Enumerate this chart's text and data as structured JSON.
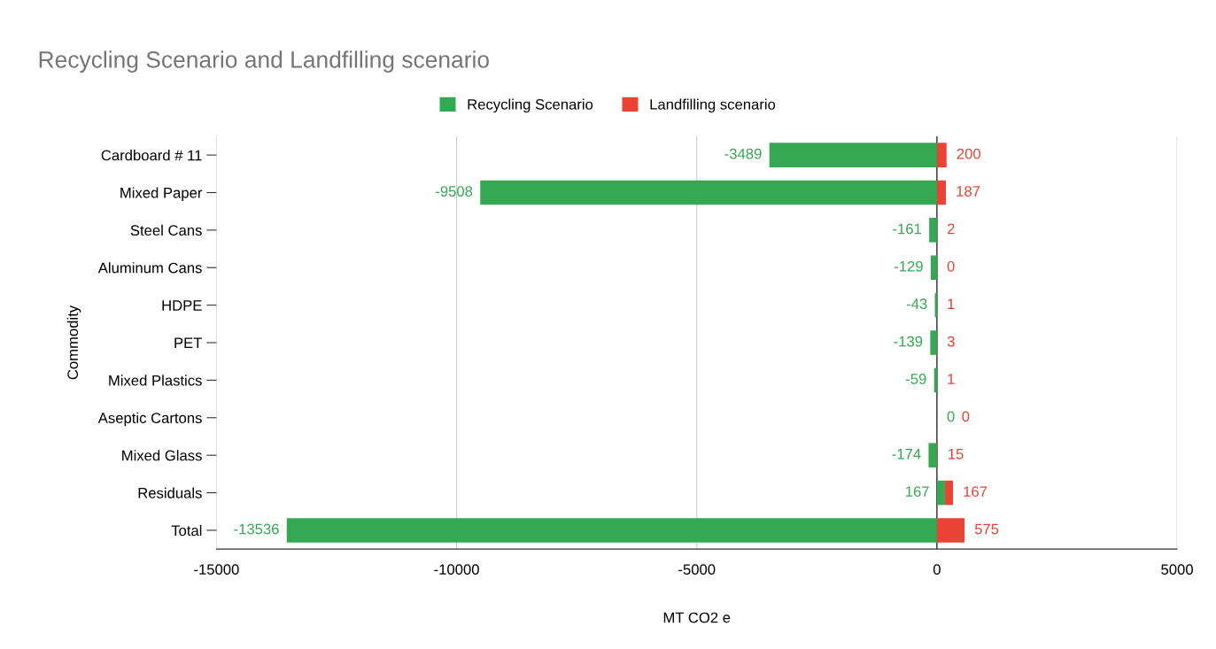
{
  "chart_data": {
    "type": "bar",
    "orientation": "horizontal",
    "stacked": true,
    "title": "Recycling Scenario and Landfilling scenario",
    "xlabel": "MT CO2 e",
    "ylabel": "Commodity",
    "categories": [
      "Cardboard # 11",
      "Mixed Paper",
      "Steel Cans",
      "Aluminum Cans",
      "HDPE",
      "PET",
      "Mixed Plastics",
      "Aseptic Cartons",
      "Mixed Glass",
      "Residuals",
      "Total"
    ],
    "series": [
      {
        "name": "Recycling Scenario",
        "color": "#34a853",
        "values": [
          -3489,
          -9508,
          -161,
          -129,
          -43,
          -139,
          -59,
          0,
          -174,
          167,
          -13536
        ]
      },
      {
        "name": "Landfilling scenario",
        "color": "#ea4335",
        "values": [
          200,
          187,
          2,
          0,
          1,
          3,
          1,
          0,
          15,
          167,
          575
        ]
      }
    ],
    "xlim": [
      -15000,
      5000
    ],
    "xticks": [
      -15000,
      -10000,
      -5000,
      0,
      5000
    ],
    "grid": "x",
    "legend": "top",
    "data_labels": true
  }
}
